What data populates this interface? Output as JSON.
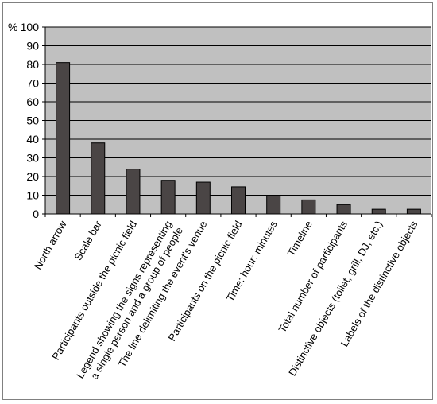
{
  "chart_data": {
    "type": "bar",
    "title": "",
    "xlabel": "",
    "ylabel": "%",
    "ylim": [
      0,
      100
    ],
    "yticks": [
      0,
      10,
      20,
      30,
      40,
      50,
      60,
      70,
      80,
      90,
      100
    ],
    "grid": true,
    "legend": "none",
    "plot_background": "#c0c0c0",
    "bar_color": "#4a4545",
    "categories": [
      "North arrow",
      "Scale bar",
      "Participants outside the picnic field",
      "Legend showing the signs representing\na single person and a group of people",
      "The line delimiting the event's venue",
      "Participants on the picnic field",
      "Time: hour: minutes",
      "Timeline",
      "Total number of participants",
      "Distinctive objects (toilet, grill, DJ, etc.)",
      "Labels of the distinctive objects"
    ],
    "values": [
      81,
      38,
      24,
      18,
      17,
      14.5,
      10,
      7.5,
      5,
      2.5,
      2.5
    ]
  }
}
